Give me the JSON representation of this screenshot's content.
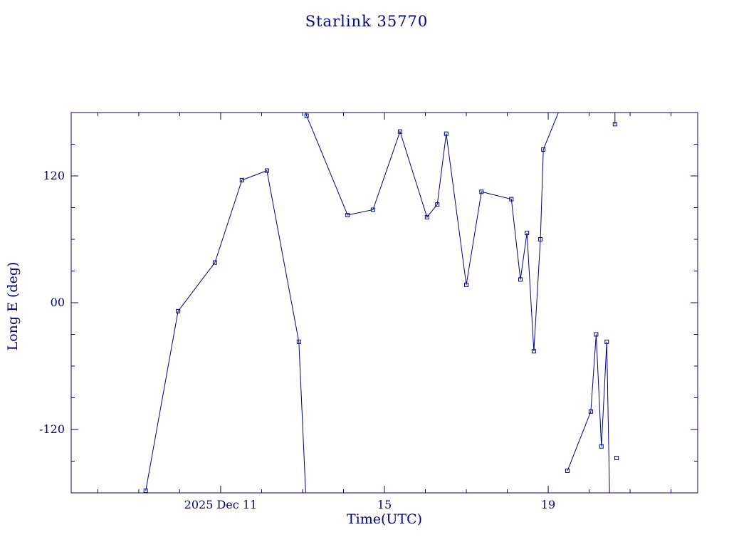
{
  "chart_data": {
    "type": "line",
    "title": "Starlink 35770",
    "xlabel": "Time(UTC)",
    "ylabel": "Long E (deg)",
    "color": "#000080",
    "background": "#ffffff",
    "x_unit": "day of 2025 Dec (UTC)",
    "xlim": [
      7.35,
      22.65
    ],
    "ylim": [
      -180,
      180
    ],
    "x_major_ticks": [
      {
        "value": 11,
        "label": "2025 Dec 11"
      },
      {
        "value": 15,
        "label": "15"
      },
      {
        "value": 19,
        "label": "19"
      }
    ],
    "x_minor_step": 1,
    "y_major_ticks": [
      {
        "value": 120,
        "label": "120"
      },
      {
        "value": 0,
        "label": "00"
      },
      {
        "value": -120,
        "label": "-120"
      }
    ],
    "y_minor_step": 30,
    "marker_shape": "open-square",
    "marker_size": 5,
    "grid": false,
    "legend": false,
    "segments_note": "each point is [day, longitude_deg, has_marker]; curve wraps at +/-180 deg",
    "segments": [
      {
        "points": [
          [
            9.17,
            -178,
            1
          ],
          [
            9.96,
            -8,
            1
          ],
          [
            10.86,
            38,
            1
          ],
          [
            11.52,
            116,
            1
          ],
          [
            12.13,
            125,
            1
          ],
          [
            12.91,
            -37,
            1
          ],
          [
            13.08,
            -183,
            0
          ]
        ]
      },
      {
        "points": [
          [
            13.06,
            183,
            0
          ],
          [
            13.1,
            177,
            1
          ],
          [
            14.1,
            83,
            1
          ],
          [
            14.72,
            88,
            1
          ],
          [
            15.38,
            162,
            1
          ],
          [
            16.04,
            81,
            1
          ],
          [
            16.29,
            93,
            1
          ],
          [
            16.51,
            160,
            1
          ],
          [
            17.0,
            17,
            1
          ],
          [
            17.37,
            105,
            1
          ],
          [
            18.1,
            98,
            1
          ],
          [
            18.32,
            22,
            1
          ],
          [
            18.48,
            66,
            1
          ],
          [
            18.65,
            -46,
            1
          ],
          [
            18.81,
            60,
            1
          ],
          [
            18.88,
            145,
            1
          ],
          [
            19.28,
            183,
            0
          ]
        ]
      },
      {
        "points": [
          [
            19.47,
            -159,
            1
          ],
          [
            20.04,
            -103,
            1
          ],
          [
            20.17,
            -30,
            1
          ],
          [
            20.3,
            -136,
            1
          ],
          [
            20.43,
            -37,
            1
          ],
          [
            20.5,
            -183,
            0
          ]
        ]
      },
      {
        "points": [
          [
            20.67,
            -147,
            1
          ]
        ]
      },
      {
        "points": [
          [
            20.63,
            183,
            0
          ],
          [
            20.63,
            169,
            1
          ]
        ]
      }
    ]
  }
}
